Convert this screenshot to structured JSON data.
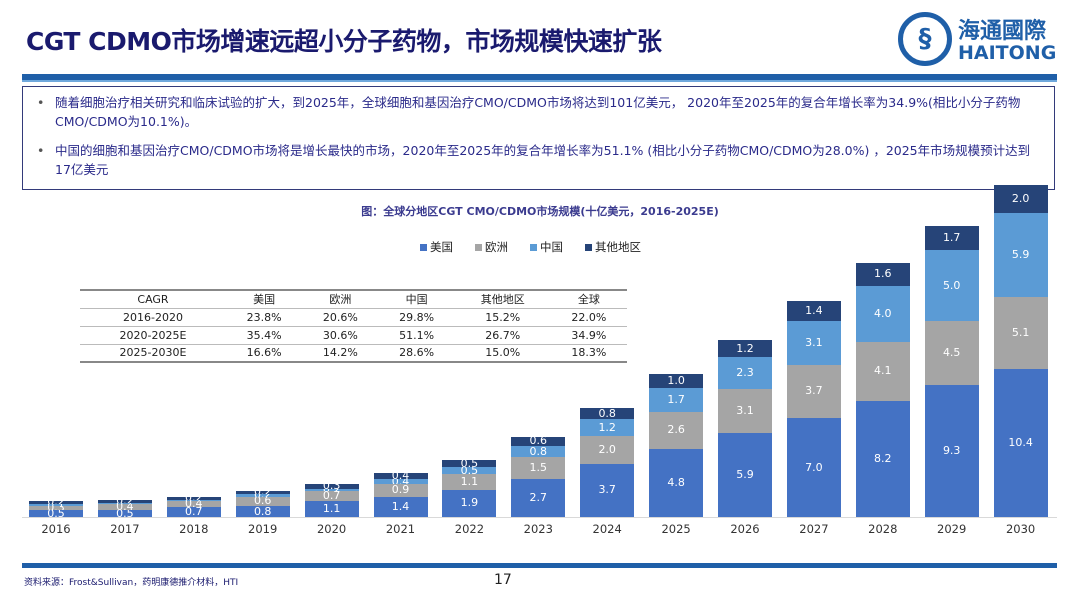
{
  "header": {
    "title": "CGT CDMO市场增速远超小分子药物，市场规模快速扩张",
    "logo_cn": "海通國際",
    "logo_en": "HAITONG"
  },
  "bullets": [
    "随着细胞治疗相关研究和临床试验的扩大，到2025年，全球细胞和基因治疗CMO/CDMO市场将达到101亿美元， 2020年至2025年的复合年增长率为34.9%(相比小分子药物CMO/CDMO为10.1%)。",
    "中国的细胞和基因治疗CMO/CDMO市场将是增长最快的市场，2020年至2025年的复合年增长率为51.1% (相比小分子药物CMO/CDMO为28.0%) ，2025年市场规模预计达到17亿美元"
  ],
  "cagr_table": {
    "headers": [
      "CAGR",
      "美国",
      "欧洲",
      "中国",
      "其他地区",
      "全球"
    ],
    "rows": [
      [
        "2016-2020",
        "23.8%",
        "20.6%",
        "29.8%",
        "15.2%",
        "22.0%"
      ],
      [
        "2020-2025E",
        "35.4%",
        "30.6%",
        "51.1%",
        "26.7%",
        "34.9%"
      ],
      [
        "2025-2030E",
        "16.6%",
        "14.2%",
        "28.6%",
        "15.0%",
        "18.3%"
      ]
    ]
  },
  "chart_data": {
    "type": "bar",
    "stacked": true,
    "title": "图：全球分地区CGT CMO/CDMO市场规模(十亿美元，2016-2025E)",
    "categories": [
      "2016",
      "2017",
      "2018",
      "2019",
      "2020",
      "2021",
      "2022",
      "2023",
      "2024",
      "2025",
      "2026",
      "2027",
      "2028",
      "2029",
      "2030"
    ],
    "legend_position": "top",
    "series": [
      {
        "name": "美国",
        "color": "#4472C4",
        "values": [
          0.5,
          0.5,
          0.7,
          0.8,
          1.1,
          1.4,
          1.9,
          2.7,
          3.7,
          4.8,
          5.9,
          7.0,
          8.2,
          9.3,
          10.4
        ]
      },
      {
        "name": "欧洲",
        "color": "#A5A5A5",
        "values": [
          0.3,
          0.4,
          0.4,
          0.6,
          0.7,
          0.9,
          1.1,
          1.5,
          2.0,
          2.6,
          3.1,
          3.7,
          4.1,
          4.5,
          5.1
        ]
      },
      {
        "name": "中国",
        "color": "#5B9BD5",
        "values": [
          0.1,
          0.1,
          0.1,
          0.2,
          0.2,
          0.4,
          0.5,
          0.8,
          1.2,
          1.7,
          2.3,
          3.1,
          4.0,
          5.0,
          5.9
        ]
      },
      {
        "name": "其他地区",
        "color": "#264478",
        "values": [
          0.2,
          0.2,
          0.2,
          0.2,
          0.3,
          0.4,
          0.5,
          0.6,
          0.8,
          1.0,
          1.2,
          1.4,
          1.6,
          1.7,
          2.0
        ]
      }
    ]
  },
  "footer": {
    "source": "资料来源：Frost&Sullivan，药明康德推介材料，HTI",
    "page": "17"
  }
}
